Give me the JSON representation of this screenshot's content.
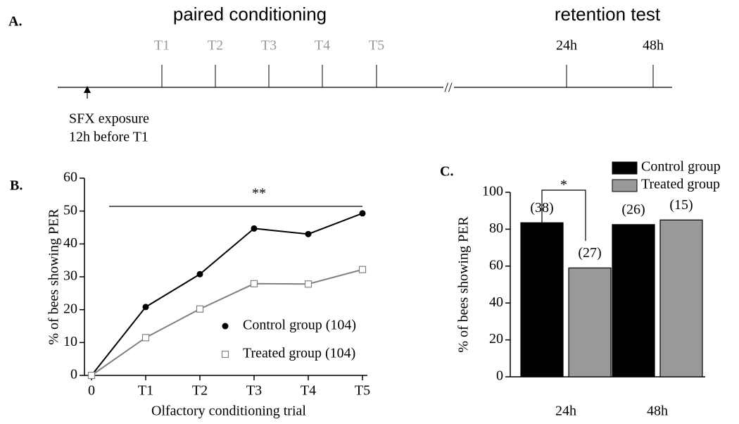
{
  "timeline": {
    "label": "A.",
    "phases": [
      "paired conditioning",
      "retention test"
    ],
    "trials": [
      "T1",
      "T2",
      "T3",
      "T4",
      "T5"
    ],
    "tests": [
      "24h",
      "48h"
    ],
    "break": "//",
    "exposure": [
      "SFX exposure",
      "12h before T1"
    ]
  },
  "chart_data": [
    {
      "type": "line",
      "label": "B.",
      "annotation": "**",
      "x_label": "Olfactory conditioning trial",
      "y_label": "% of bees showing PER",
      "categories": [
        "0",
        "T1",
        "T2",
        "T3",
        "T4",
        "T5"
      ],
      "series": [
        {
          "name": "Control group (104)",
          "color": "#000000",
          "marker": "circle",
          "values": [
            0,
            20.8,
            30.8,
            44.7,
            43,
            49.3
          ]
        },
        {
          "name": "Treated group (104)",
          "color": "#808080",
          "marker": "square",
          "values": [
            0,
            11.5,
            20.2,
            27.9,
            27.8,
            32.2
          ]
        }
      ],
      "ylim": [
        0,
        60
      ],
      "yticks": [
        0,
        10,
        20,
        30,
        40,
        50,
        60
      ]
    },
    {
      "type": "bar",
      "label": "C.",
      "annotation": "*",
      "y_label": "% of bees showing PER",
      "categories": [
        "24h",
        "48h"
      ],
      "series": [
        {
          "name": "Control group",
          "color": "#000000",
          "values": [
            83.5,
            82.5
          ],
          "sample_sizes": [
            "(38)",
            "(26)"
          ]
        },
        {
          "name": "Treated group",
          "color": "#999999",
          "values": [
            59,
            85
          ],
          "sample_sizes": [
            "(27)",
            "(15)"
          ]
        }
      ],
      "ylim": [
        0,
        100
      ],
      "yticks": [
        0,
        20,
        40,
        60,
        80,
        100
      ]
    }
  ]
}
